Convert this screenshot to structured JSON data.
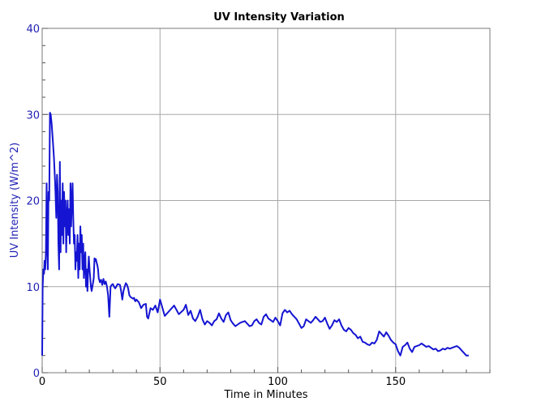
{
  "chart_data": {
    "type": "line",
    "title": "UV Intensity Variation",
    "xlabel": "Time in Minutes",
    "ylabel": "UV Intensity (W/m^2)",
    "xlim": [
      0,
      190
    ],
    "ylim": [
      0,
      40
    ],
    "x_ticks": [
      "0",
      "50",
      "100",
      "150"
    ],
    "y_ticks": [
      "0",
      "10",
      "20",
      "30",
      "40"
    ],
    "grid": true,
    "line_color": "#1414d2",
    "axis_label_color": "#1f1fb4",
    "series": [
      {
        "x": [
          0,
          0.2,
          0.5,
          0.8,
          1.0,
          1.3,
          1.6,
          1.9,
          2.1,
          2.4,
          2.7,
          3.0,
          3.3,
          3.6,
          4.0,
          4.5,
          5.0,
          5.5,
          6.0,
          6.3,
          6.6,
          6.9,
          7.2,
          7.5,
          7.8,
          8.1,
          8.4,
          8.7,
          9.0,
          9.3,
          9.6,
          9.9,
          10.2,
          10.5,
          10.8,
          11.1,
          11.4,
          11.7,
          12.0,
          12.3,
          12.6,
          12.9,
          13.2,
          13.5,
          13.8,
          14.1,
          14.4,
          14.7,
          15.0,
          15.3,
          15.6,
          15.9,
          16.2,
          16.5,
          16.8,
          17.1,
          17.4,
          17.7,
          18.0,
          18.3,
          18.6,
          18.9,
          19.2,
          19.5,
          19.8,
          20.1,
          20.4,
          20.7,
          21.0,
          21.3,
          21.6,
          21.9,
          22.2,
          22.5,
          22.8,
          23.1,
          23.4,
          23.7,
          24.0,
          24.5,
          25,
          25.5,
          26,
          26.5,
          27,
          27.5,
          28,
          28.5,
          29,
          29.5,
          30,
          30.5,
          31,
          32,
          33,
          33.5,
          34,
          34.5,
          35,
          35.5,
          36,
          36.5,
          37,
          37.5,
          38,
          38.5,
          39,
          39.3,
          39.6,
          40,
          41,
          42,
          43,
          44,
          44.5,
          45,
          46,
          47,
          48,
          49,
          50,
          52,
          54,
          56,
          58,
          60,
          61,
          62,
          63,
          64,
          65,
          66,
          67,
          68,
          69,
          70,
          71,
          72,
          73,
          74,
          75,
          76,
          77,
          78,
          79,
          80,
          81,
          82,
          83,
          84,
          85,
          86,
          87,
          88,
          89,
          90,
          91,
          92,
          93,
          94,
          95,
          96,
          97,
          98,
          99,
          100,
          101,
          102,
          103,
          104,
          105,
          106,
          107,
          108,
          109,
          110,
          111,
          112,
          113,
          114,
          115,
          116,
          117,
          118,
          119,
          120,
          121,
          122,
          123,
          124,
          125,
          126,
          127,
          128,
          129,
          130,
          131,
          132,
          133,
          134,
          135,
          136,
          137,
          138,
          139,
          140,
          141,
          142,
          143,
          144,
          145,
          146,
          147,
          148,
          149,
          150,
          151,
          152,
          153,
          154,
          155,
          156,
          157,
          158,
          159,
          160,
          161,
          162,
          163,
          164,
          165,
          166,
          167,
          168,
          169,
          170,
          171,
          172,
          173,
          174,
          175,
          176,
          177,
          178,
          179,
          180,
          181
        ],
        "y": [
          2,
          10,
          12,
          11.5,
          13,
          12,
          14,
          22,
          15,
          12,
          21,
          20,
          30.2,
          30,
          29,
          27,
          25,
          22,
          18,
          23,
          21,
          15,
          12,
          24.5,
          14,
          20,
          16,
          22,
          15,
          21,
          17,
          20,
          14,
          18,
          20,
          16,
          19,
          15,
          22,
          17,
          20,
          22,
          18,
          15,
          16,
          12,
          14,
          13,
          16,
          11,
          15,
          12,
          17,
          14,
          16,
          12,
          15,
          11,
          13,
          14,
          10,
          12,
          9.5,
          12,
          13.5,
          12,
          11,
          10,
          9.5,
          10,
          10.5,
          11,
          13.3,
          13,
          13.2,
          12.8,
          12.5,
          12,
          11,
          10.5,
          10.8,
          10.2,
          10.9,
          10.3,
          10.6,
          10,
          9,
          6.5,
          10,
          10.2,
          10.3,
          10,
          9.8,
          10.3,
          10.2,
          9.5,
          8.5,
          9.5,
          10,
          10.4,
          10.2,
          9.8,
          9,
          8.8,
          8.7,
          8.6,
          8.7,
          8.4,
          8.3,
          8.5,
          8.2,
          7.5,
          7.9,
          8,
          6.5,
          6.3,
          7.5,
          7.3,
          7.8,
          7,
          8.5,
          6.6,
          7.2,
          7.8,
          6.8,
          7.3,
          7.9,
          6.7,
          7.2,
          6.3,
          6,
          6.5,
          7.3,
          6.2,
          5.6,
          6,
          5.8,
          5.5,
          6,
          6.2,
          6.9,
          6.3,
          5.9,
          6.7,
          7,
          6.1,
          5.7,
          5.4,
          5.6,
          5.8,
          5.9,
          6,
          5.7,
          5.4,
          5.5,
          6,
          6.2,
          5.8,
          5.6,
          6.5,
          6.8,
          6.3,
          6.1,
          5.9,
          6.4,
          6,
          5.5,
          6.9,
          7.3,
          7,
          7.2,
          6.8,
          6.5,
          6.2,
          5.7,
          5.2,
          5.4,
          6.2,
          6,
          5.8,
          6.1,
          6.5,
          6.2,
          5.9,
          6,
          6.4,
          5.7,
          5.1,
          5.5,
          6.1,
          5.9,
          6.2,
          5.5,
          5,
          4.8,
          5.2,
          5,
          4.6,
          4.4,
          4,
          4.2,
          3.6,
          3.5,
          3.3,
          3.2,
          3.5,
          3.4,
          3.8,
          4.8,
          4.5,
          4.2,
          4.7,
          4.3,
          3.8,
          3.5,
          3.3,
          2.5,
          2,
          3,
          3.2,
          3.5,
          2.8,
          2.4,
          3,
          3.1,
          3.2,
          3.4,
          3.2,
          3,
          3.1,
          2.9,
          2.7,
          2.8,
          2.5,
          2.6,
          2.8,
          2.7,
          2.9,
          2.8,
          2.9,
          3,
          3.1,
          2.9,
          2.6,
          2.3,
          2,
          2
        ]
      }
    ]
  }
}
